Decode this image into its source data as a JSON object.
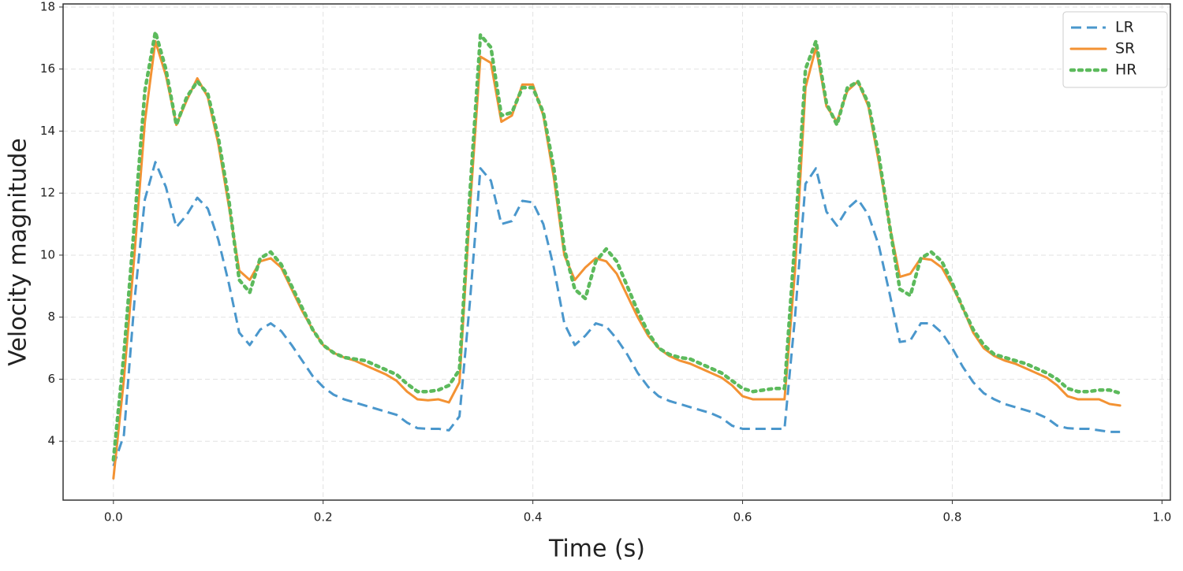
{
  "chart_data": {
    "type": "line",
    "xlabel": "Time (s)",
    "ylabel": "Velocity magnitude",
    "x": [
      0,
      0.01,
      0.02,
      0.03,
      0.04,
      0.05,
      0.06,
      0.07,
      0.08,
      0.09,
      0.1,
      0.11,
      0.12,
      0.13,
      0.14,
      0.15,
      0.16,
      0.17,
      0.18,
      0.19,
      0.2,
      0.21,
      0.22,
      0.23,
      0.24,
      0.25,
      0.26,
      0.27,
      0.28,
      0.29,
      0.3,
      0.31,
      0.32,
      0.33,
      0.34,
      0.35,
      0.36,
      0.37,
      0.38,
      0.39,
      0.4,
      0.41,
      0.42,
      0.43,
      0.44,
      0.45,
      0.46,
      0.47,
      0.48,
      0.49,
      0.5,
      0.51,
      0.52,
      0.53,
      0.54,
      0.55,
      0.56,
      0.57,
      0.58,
      0.59,
      0.6,
      0.61,
      0.62,
      0.63,
      0.64,
      0.65,
      0.66,
      0.67,
      0.68,
      0.69,
      0.7,
      0.71,
      0.72,
      0.73,
      0.74,
      0.75,
      0.76,
      0.77,
      0.78,
      0.79,
      0.8,
      0.81,
      0.82,
      0.83,
      0.84,
      0.85,
      0.86,
      0.87,
      0.88,
      0.89,
      0.9,
      0.91,
      0.92,
      0.93,
      0.94,
      0.95,
      0.96
    ],
    "series": [
      {
        "name": "LR",
        "color": "#4a97cc",
        "linestyle": "dashed",
        "values": [
          3.2,
          4.2,
          8.5,
          11.8,
          13.0,
          12.2,
          10.9,
          11.3,
          11.85,
          11.5,
          10.5,
          9.1,
          7.5,
          7.1,
          7.6,
          7.8,
          7.55,
          7.1,
          6.6,
          6.1,
          5.75,
          5.5,
          5.35,
          5.25,
          5.15,
          5.05,
          4.95,
          4.85,
          4.6,
          4.42,
          4.4,
          4.4,
          4.35,
          4.8,
          8.5,
          12.8,
          12.4,
          11.0,
          11.1,
          11.75,
          11.7,
          11.0,
          9.6,
          7.8,
          7.1,
          7.4,
          7.8,
          7.7,
          7.3,
          6.8,
          6.2,
          5.75,
          5.45,
          5.3,
          5.2,
          5.1,
          5.0,
          4.9,
          4.75,
          4.5,
          4.4,
          4.4,
          4.4,
          4.4,
          4.4,
          8.0,
          12.3,
          12.8,
          11.4,
          10.95,
          11.5,
          11.8,
          11.3,
          10.3,
          8.8,
          7.2,
          7.25,
          7.8,
          7.8,
          7.5,
          7.0,
          6.4,
          5.9,
          5.55,
          5.35,
          5.2,
          5.1,
          5.0,
          4.9,
          4.75,
          4.5,
          4.42,
          4.4,
          4.4,
          4.35,
          4.3,
          4.3
        ]
      },
      {
        "name": "SR",
        "color": "#f39233",
        "linestyle": "solid",
        "values": [
          2.8,
          6.0,
          10.0,
          14.3,
          16.9,
          15.8,
          14.2,
          15.0,
          15.7,
          15.1,
          13.6,
          11.6,
          9.5,
          9.2,
          9.8,
          9.9,
          9.6,
          8.9,
          8.2,
          7.6,
          7.1,
          6.85,
          6.7,
          6.6,
          6.45,
          6.3,
          6.15,
          5.95,
          5.6,
          5.35,
          5.32,
          5.35,
          5.25,
          5.9,
          11.5,
          16.4,
          16.2,
          14.3,
          14.5,
          15.5,
          15.5,
          14.5,
          12.5,
          10.0,
          9.2,
          9.6,
          9.9,
          9.8,
          9.4,
          8.7,
          8.0,
          7.4,
          7.0,
          6.75,
          6.6,
          6.5,
          6.35,
          6.2,
          6.05,
          5.8,
          5.45,
          5.35,
          5.35,
          5.35,
          5.35,
          9.5,
          15.4,
          16.7,
          14.8,
          14.3,
          15.3,
          15.6,
          14.8,
          13.0,
          11.0,
          9.3,
          9.4,
          9.9,
          9.85,
          9.6,
          9.0,
          8.3,
          7.5,
          7.0,
          6.75,
          6.6,
          6.5,
          6.35,
          6.2,
          6.05,
          5.8,
          5.45,
          5.35,
          5.35,
          5.35,
          5.2,
          5.15
        ]
      },
      {
        "name": "HR",
        "color": "#5cba5c",
        "linestyle": "dotted",
        "values": [
          3.4,
          6.8,
          11.0,
          15.3,
          17.2,
          16.0,
          14.2,
          15.1,
          15.6,
          15.2,
          13.8,
          11.8,
          9.2,
          8.8,
          9.9,
          10.1,
          9.7,
          9.0,
          8.3,
          7.6,
          7.1,
          6.85,
          6.7,
          6.65,
          6.6,
          6.45,
          6.3,
          6.15,
          5.85,
          5.6,
          5.6,
          5.65,
          5.8,
          6.3,
          12.0,
          17.1,
          16.7,
          14.5,
          14.6,
          15.4,
          15.4,
          14.6,
          12.8,
          10.2,
          8.9,
          8.6,
          9.8,
          10.2,
          9.8,
          9.0,
          8.2,
          7.5,
          7.0,
          6.8,
          6.7,
          6.65,
          6.5,
          6.35,
          6.2,
          5.95,
          5.7,
          5.6,
          5.65,
          5.7,
          5.7,
          10.5,
          16.0,
          16.9,
          14.9,
          14.2,
          15.4,
          15.6,
          14.9,
          13.2,
          11.0,
          8.9,
          8.7,
          9.9,
          10.1,
          9.8,
          9.1,
          8.3,
          7.6,
          7.1,
          6.8,
          6.7,
          6.6,
          6.5,
          6.35,
          6.2,
          6.0,
          5.7,
          5.6,
          5.6,
          5.65,
          5.65,
          5.55
        ]
      }
    ],
    "xlim": [
      -0.048,
      1.008
    ],
    "ylim": [
      2.1,
      18.1
    ],
    "xticks": [
      {
        "value": 0,
        "label": "0.0"
      },
      0.2,
      0.4,
      0.6,
      0.8,
      {
        "value": 1,
        "label": "1.0"
      }
    ],
    "yticks": [
      4,
      6,
      8,
      10,
      12,
      14,
      16,
      18
    ],
    "grid": true,
    "legend": "upper right"
  }
}
